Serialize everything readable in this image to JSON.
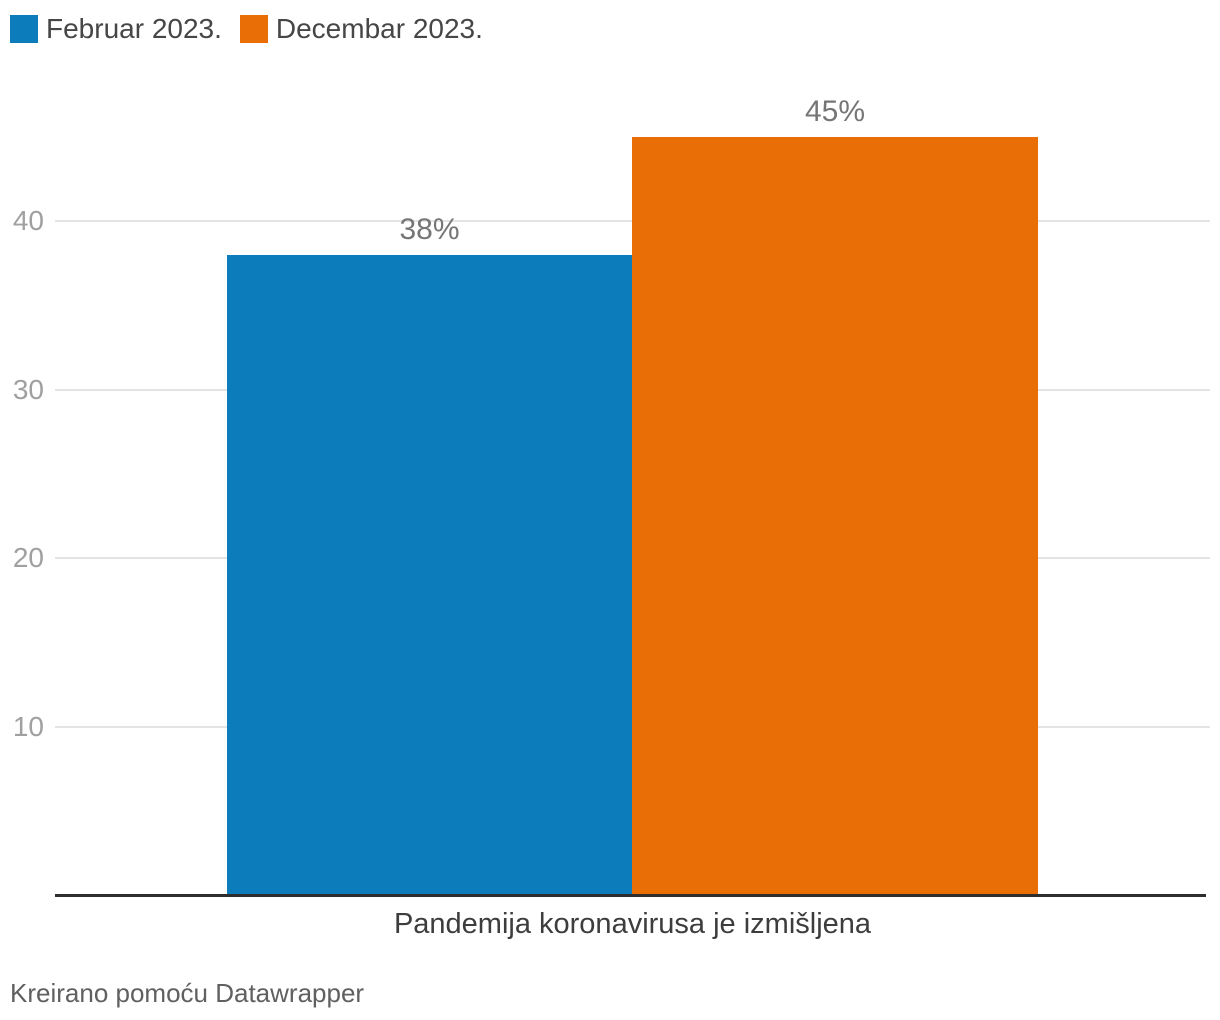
{
  "chart_data": {
    "type": "bar",
    "title": "",
    "categories": [
      "Pandemija koronavirusa je izmišljena"
    ],
    "series": [
      {
        "name": "Februar 2023.",
        "values": [
          38
        ],
        "labels": [
          "38%"
        ],
        "color": "#0d7cba"
      },
      {
        "name": "Decembar 2023.",
        "values": [
          45
        ],
        "labels": [
          "45%"
        ],
        "color": "#ea6e06"
      }
    ],
    "xlabel": "",
    "ylabel": "",
    "y_ticks": [
      10,
      20,
      30,
      40
    ],
    "ylim": [
      0,
      47.2
    ],
    "grid": true,
    "legend_position": "top-left",
    "gridline_color": "#e4e4e4",
    "axis_line_color": "#2e2e2e"
  },
  "footer": {
    "credit": "Kreirano pomoću Datawrapper"
  }
}
